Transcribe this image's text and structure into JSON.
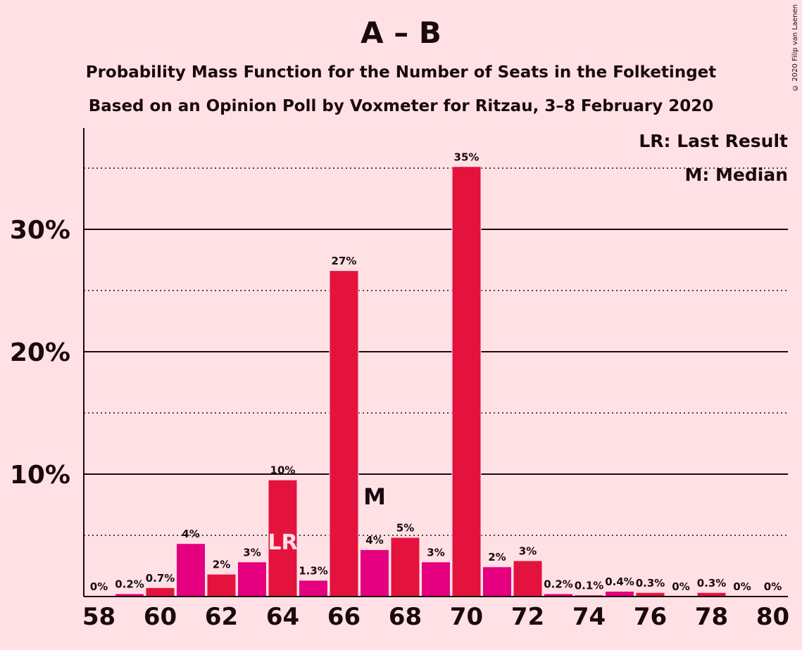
{
  "header": {
    "title": "A – B",
    "subtitle1": "Probability Mass Function for the Number of Seats in the Folketinget",
    "subtitle2": "Based on an Opinion Poll by Voxmeter for Ritzau, 3–8 February 2020",
    "copyright": "© 2020 Filip van Laenen"
  },
  "legend": {
    "lr": "LR: Last Result",
    "m": "M: Median"
  },
  "colors": {
    "background": "#FFE1E5",
    "red": "#E3133E",
    "magenta": "#E4007E",
    "axis": "#1a0a10"
  },
  "chart_data": {
    "type": "bar",
    "x": [
      58,
      59,
      60,
      61,
      62,
      63,
      64,
      65,
      66,
      67,
      68,
      69,
      70,
      71,
      72,
      73,
      74,
      75,
      76,
      77,
      78,
      79,
      80
    ],
    "values": [
      0,
      0.2,
      0.7,
      4.3,
      1.8,
      2.8,
      9.5,
      1.3,
      26.6,
      3.8,
      4.8,
      2.8,
      35.1,
      2.4,
      2.9,
      0.2,
      0.1,
      0.4,
      0.3,
      0,
      0.3,
      0,
      0
    ],
    "labels": [
      "0%",
      "0.2%",
      "0.7%",
      "4%",
      "2%",
      "3%",
      "10%",
      "1.3%",
      "27%",
      "4%",
      "5%",
      "3%",
      "35%",
      "2%",
      "3%",
      "0.2%",
      "0.1%",
      "0.4%",
      "0.3%",
      "0%",
      "0.3%",
      "0%",
      "0%"
    ],
    "colors": [
      "red",
      "magenta",
      "red",
      "magenta",
      "red",
      "magenta",
      "red",
      "magenta",
      "red",
      "magenta",
      "red",
      "magenta",
      "red",
      "magenta",
      "red",
      "magenta",
      "red",
      "magenta",
      "red",
      "magenta",
      "red",
      "magenta",
      "red"
    ],
    "xticks": [
      58,
      60,
      62,
      64,
      66,
      68,
      70,
      72,
      74,
      76,
      78,
      80
    ],
    "yticks": [
      {
        "value": 10,
        "label": "10%"
      },
      {
        "value": 20,
        "label": "20%"
      },
      {
        "value": 30,
        "label": "30%"
      }
    ],
    "minor_gridlines": [
      5,
      15,
      25,
      35
    ],
    "ylim": [
      0,
      38
    ],
    "last_result": {
      "seat": 64,
      "label": "LR"
    },
    "median": {
      "seat": 67,
      "label": "M"
    },
    "grid": true,
    "legend_position": "top-right"
  }
}
